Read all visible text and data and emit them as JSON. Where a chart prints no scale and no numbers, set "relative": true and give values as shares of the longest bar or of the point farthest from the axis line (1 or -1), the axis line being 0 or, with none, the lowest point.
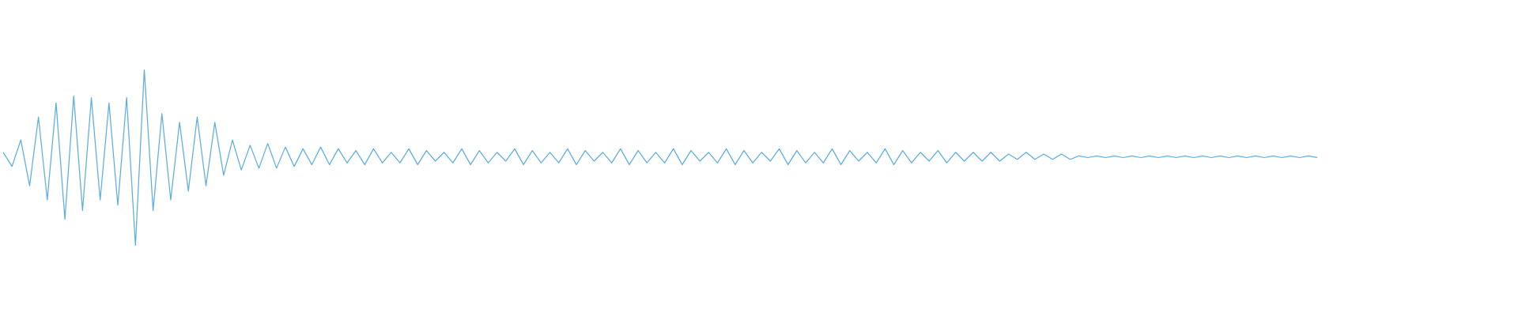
{
  "chart_data": {
    "type": "line",
    "relative": true,
    "categories": [
      null,
      null,
      null,
      null,
      null,
      null,
      null,
      null,
      null,
      null,
      null,
      null,
      null,
      null,
      null,
      null,
      null,
      null,
      null,
      null,
      null,
      null,
      null,
      null,
      null,
      null,
      null,
      null,
      null,
      null,
      null,
      null,
      null,
      null,
      null,
      null,
      null,
      null,
      null,
      null,
      null,
      null,
      null,
      null,
      null,
      null,
      null,
      null,
      null,
      null,
      null,
      null,
      null,
      null,
      null,
      null,
      null,
      null,
      null,
      null,
      null,
      null,
      null,
      null,
      null,
      null,
      null,
      null,
      null,
      null,
      null,
      null,
      null,
      null,
      null,
      null,
      null,
      null,
      null,
      null,
      null,
      null,
      null,
      null,
      null,
      null,
      null,
      null,
      null,
      null,
      null,
      null,
      null,
      null,
      null,
      null,
      null,
      null,
      null,
      null,
      null,
      null,
      null,
      null,
      null,
      null,
      null,
      null,
      null,
      null,
      null,
      null,
      null,
      null,
      null,
      null,
      null,
      null,
      null,
      null,
      null,
      null,
      null,
      null,
      null,
      null,
      null,
      null,
      null,
      null,
      null,
      null,
      null,
      null,
      null,
      null,
      null,
      null,
      null,
      null,
      null,
      null,
      null,
      null,
      null,
      null,
      null,
      null,
      null,
      null
    ],
    "series": [
      {
        "color": "#5dade2",
        "values": [
          0.53,
          0.45,
          0.6,
          0.34,
          0.73,
          0.26,
          0.81,
          0.15,
          0.85,
          0.2,
          0.84,
          0.26,
          0.81,
          0.23,
          0.84,
          0,
          1,
          0.2,
          0.75,
          0.26,
          0.7,
          0.31,
          0.73,
          0.34,
          0.7,
          0.4,
          0.6,
          0.43,
          0.57,
          0.44,
          0.58,
          0.44,
          0.56,
          0.45,
          0.55,
          0.46,
          0.56,
          0.46,
          0.55,
          0.47,
          0.54,
          0.46,
          0.55,
          0.47,
          0.53,
          0.47,
          0.55,
          0.46,
          0.54,
          0.48,
          0.53,
          0.47,
          0.55,
          0.46,
          0.54,
          0.47,
          0.53,
          0.48,
          0.55,
          0.46,
          0.54,
          0.47,
          0.53,
          0.47,
          0.55,
          0.46,
          0.54,
          0.48,
          0.53,
          0.47,
          0.55,
          0.46,
          0.54,
          0.47,
          0.53,
          0.47,
          0.55,
          0.46,
          0.54,
          0.48,
          0.53,
          0.47,
          0.55,
          0.46,
          0.54,
          0.47,
          0.53,
          0.48,
          0.55,
          0.46,
          0.54,
          0.47,
          0.53,
          0.47,
          0.55,
          0.46,
          0.54,
          0.48,
          0.53,
          0.47,
          0.55,
          0.46,
          0.54,
          0.47,
          0.53,
          0.48,
          0.54,
          0.47,
          0.53,
          0.48,
          0.53,
          0.48,
          0.53,
          0.48,
          0.52,
          0.49,
          0.53,
          0.49,
          0.52,
          0.49,
          0.52,
          0.49,
          0.51,
          0.5,
          0.51,
          0.5,
          0.51,
          0.5,
          0.51,
          0.5,
          0.51,
          0.5,
          0.51,
          0.5,
          0.51,
          0.5,
          0.51,
          0.5,
          0.51,
          0.5,
          0.51,
          0.5,
          0.51,
          0.5,
          0.51,
          0.5,
          0.51,
          0.5,
          0.51,
          0.5
        ]
      }
    ]
  }
}
